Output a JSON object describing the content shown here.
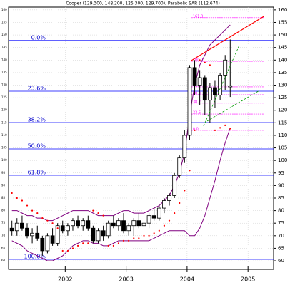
{
  "chart_data": {
    "type": "candlestick",
    "title": "Cooper (129.300, 148.200, 125.300, 129.700), Parabolic SAR (112.674)",
    "x": [
      2001.125,
      2001.208,
      2001.292,
      2001.375,
      2001.458,
      2001.542,
      2001.625,
      2001.708,
      2001.792,
      2001.875,
      2001.958,
      2002.042,
      2002.125,
      2002.208,
      2002.292,
      2002.375,
      2002.458,
      2002.542,
      2002.625,
      2002.708,
      2002.792,
      2002.875,
      2002.958,
      2003.042,
      2003.125,
      2003.208,
      2003.292,
      2003.375,
      2003.458,
      2003.542,
      2003.625,
      2003.708,
      2003.792,
      2003.875,
      2003.958,
      2004.042,
      2004.125,
      2004.208,
      2004.292,
      2004.375,
      2004.458,
      2004.542,
      2004.625,
      2004.708
    ],
    "open": [
      73,
      72,
      75,
      73,
      70,
      71,
      69,
      64,
      70,
      67,
      74,
      72,
      74,
      76,
      74,
      76,
      73,
      68,
      72,
      70,
      75,
      74,
      76,
      72,
      74,
      76,
      74,
      75,
      78,
      77,
      81,
      84,
      86,
      94,
      101,
      110,
      137,
      130,
      133,
      124,
      129,
      126,
      134,
      129.3
    ],
    "high": [
      76,
      77,
      78,
      75,
      73,
      74,
      70,
      71,
      73,
      75,
      76,
      75,
      77,
      78,
      77,
      78,
      74,
      73,
      74,
      76,
      78,
      77,
      79,
      75,
      77,
      79,
      77,
      79,
      81,
      82,
      85,
      87,
      95,
      102,
      112,
      138,
      140,
      136,
      134,
      131,
      132,
      135,
      142,
      148.2
    ],
    "low": [
      70,
      70,
      72,
      69,
      67,
      68,
      62,
      63,
      66,
      66,
      71,
      70,
      72,
      73,
      72,
      72,
      67,
      67,
      68,
      69,
      73,
      72,
      71,
      70,
      70,
      73,
      72,
      73,
      76,
      76,
      79,
      82,
      85,
      93,
      99,
      108,
      126,
      122,
      118,
      115,
      121,
      124,
      128,
      125.3
    ],
    "close": [
      72,
      75,
      73,
      70,
      71,
      69,
      64,
      70,
      67,
      74,
      72,
      74,
      76,
      74,
      76,
      73,
      68,
      72,
      70,
      75,
      74,
      76,
      72,
      74,
      76,
      74,
      75,
      78,
      77,
      81,
      84,
      86,
      94,
      101,
      110,
      137,
      130,
      133,
      124,
      129,
      126,
      134,
      140,
      129.7
    ],
    "up_color": "#ffffff",
    "down_color": "#000000",
    "bands": {
      "color": "#800080",
      "upper": [
        80,
        80,
        79,
        78,
        78,
        77,
        77,
        76,
        76,
        77,
        78,
        79,
        80,
        80,
        80,
        80,
        79,
        78,
        78,
        78,
        78,
        79,
        80,
        80,
        79,
        79,
        79,
        80,
        81,
        82,
        84,
        86,
        90,
        95,
        103,
        118,
        130,
        138,
        142,
        146,
        148,
        150,
        152,
        154
      ],
      "lower": [
        68,
        67,
        66,
        64,
        63,
        62,
        61,
        60,
        60,
        61,
        62,
        64,
        66,
        67,
        68,
        68,
        67,
        67,
        66,
        66,
        67,
        68,
        68,
        68,
        68,
        68,
        68,
        68,
        69,
        70,
        71,
        72,
        72,
        72,
        72,
        70,
        70,
        73,
        78,
        85,
        92,
        100,
        107,
        113
      ]
    },
    "sar": {
      "color": "#ff0000",
      "values": [
        87,
        85,
        84,
        82,
        80,
        79,
        77,
        76,
        75,
        73,
        64,
        64,
        65,
        66,
        67,
        67,
        80,
        79,
        78,
        66,
        66,
        67,
        68,
        68,
        69,
        69,
        70,
        70,
        71,
        72,
        74,
        76,
        79,
        83,
        88,
        96,
        112,
        140,
        139,
        138,
        112,
        113,
        114,
        112.674
      ]
    },
    "fib_color": "#0000ff",
    "fib_levels": [
      {
        "label": "0.0%",
        "value": 147.8
      },
      {
        "label": "23.6%",
        "value": 127.6
      },
      {
        "label": "38.2%",
        "value": 115.1
      },
      {
        "label": "50.0%",
        "value": 104.6
      },
      {
        "label": "61.8%",
        "value": 94.1
      },
      {
        "label": "100.0%",
        "value": 60.6
      }
    ],
    "ext_color": "#ff00ff",
    "ext_levels": [
      {
        "label": "161.8",
        "value": 156.9
      },
      {
        "label": "100.0",
        "value": 139.5
      },
      {
        "label": "61.8",
        "value": 129.3
      },
      {
        "label": "50.0",
        "value": 126.2
      },
      {
        "label": "38.2",
        "value": 122.8
      },
      {
        "label": "23.6",
        "value": 118.5
      },
      {
        "label": "0.0",
        "value": 112
      }
    ],
    "ext_xlim": [
      2004.07,
      2005.26
    ],
    "trend_lines": [
      {
        "color": "#ff0000",
        "dash": false,
        "x": [
          2004.07,
          2005.26
        ],
        "y": [
          139.8,
          157.4
        ]
      },
      {
        "color": "#009900",
        "dash": true,
        "x": [
          2004.27,
          2004.85
        ],
        "y": [
          113.7,
          145.5
        ]
      },
      {
        "color": "#009900",
        "dash": true,
        "x": [
          2004.33,
          2005.17
        ],
        "y": [
          115.7,
          127.6
        ]
      }
    ],
    "xlim": [
      2001.07,
      2005.42
    ],
    "xticks": [
      2002,
      2003,
      2004,
      2005
    ],
    "ylim": [
      56.6,
      161.1
    ],
    "yticks": [
      60,
      65,
      70,
      75,
      80,
      85,
      90,
      95,
      100,
      105,
      110,
      115,
      120,
      125,
      130,
      135,
      140,
      145,
      150,
      155,
      160
    ],
    "grid": true
  }
}
